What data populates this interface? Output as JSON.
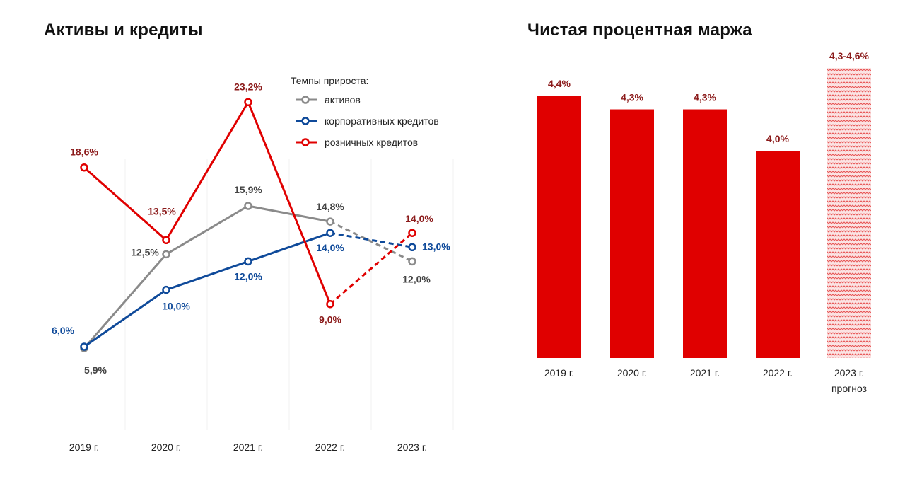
{
  "chart_data": [
    {
      "type": "line",
      "title": "Активы и кредиты",
      "categories": [
        "2019 г.",
        "2020 г.",
        "2021 г.",
        "2022 г.",
        "2023 г."
      ],
      "legend_title": "Темпы прироста:",
      "legend_position": "top-right",
      "series": [
        {
          "name": "активов",
          "color": "#8a8a8a",
          "values": [
            5.9,
            12.5,
            15.9,
            14.8,
            12.0
          ],
          "labels": [
            "5,9%",
            "12,5%",
            "15,9%",
            "14,8%",
            "12,0%"
          ],
          "forecast_from_index": 3
        },
        {
          "name": "корпоративных кредитов",
          "color": "#0f4a9a",
          "values": [
            6.0,
            10.0,
            12.0,
            14.0,
            13.0
          ],
          "labels": [
            "6,0%",
            "10,0%",
            "12,0%",
            "14,0%",
            "13,0%"
          ],
          "forecast_from_index": 3
        },
        {
          "name": "розничных кредитов",
          "color": "#e00000",
          "label_color": "#8b1a1a",
          "values": [
            18.6,
            13.5,
            23.2,
            9.0,
            14.0
          ],
          "labels": [
            "18,6%",
            "13,5%",
            "23,2%",
            "9,0%",
            "14,0%"
          ],
          "forecast_from_index": 3
        }
      ]
    },
    {
      "type": "bar",
      "title": "Чистая процентная маржа",
      "categories": [
        "2019 г.",
        "2020 г.",
        "2021 г.",
        "2022 г.",
        "2023 г."
      ],
      "category_sublabels": [
        "",
        "",
        "",
        "",
        "прогноз"
      ],
      "values": [
        4.4,
        4.3,
        4.3,
        4.0,
        4.6
      ],
      "range_low": [
        null,
        null,
        null,
        null,
        4.3
      ],
      "labels": [
        "4,4%",
        "4,3%",
        "4,3%",
        "4,0%",
        "4,3-4,6%"
      ],
      "forecast_index": 4,
      "bar_color": "#e00000",
      "label_color": "#8b1a1a"
    }
  ]
}
